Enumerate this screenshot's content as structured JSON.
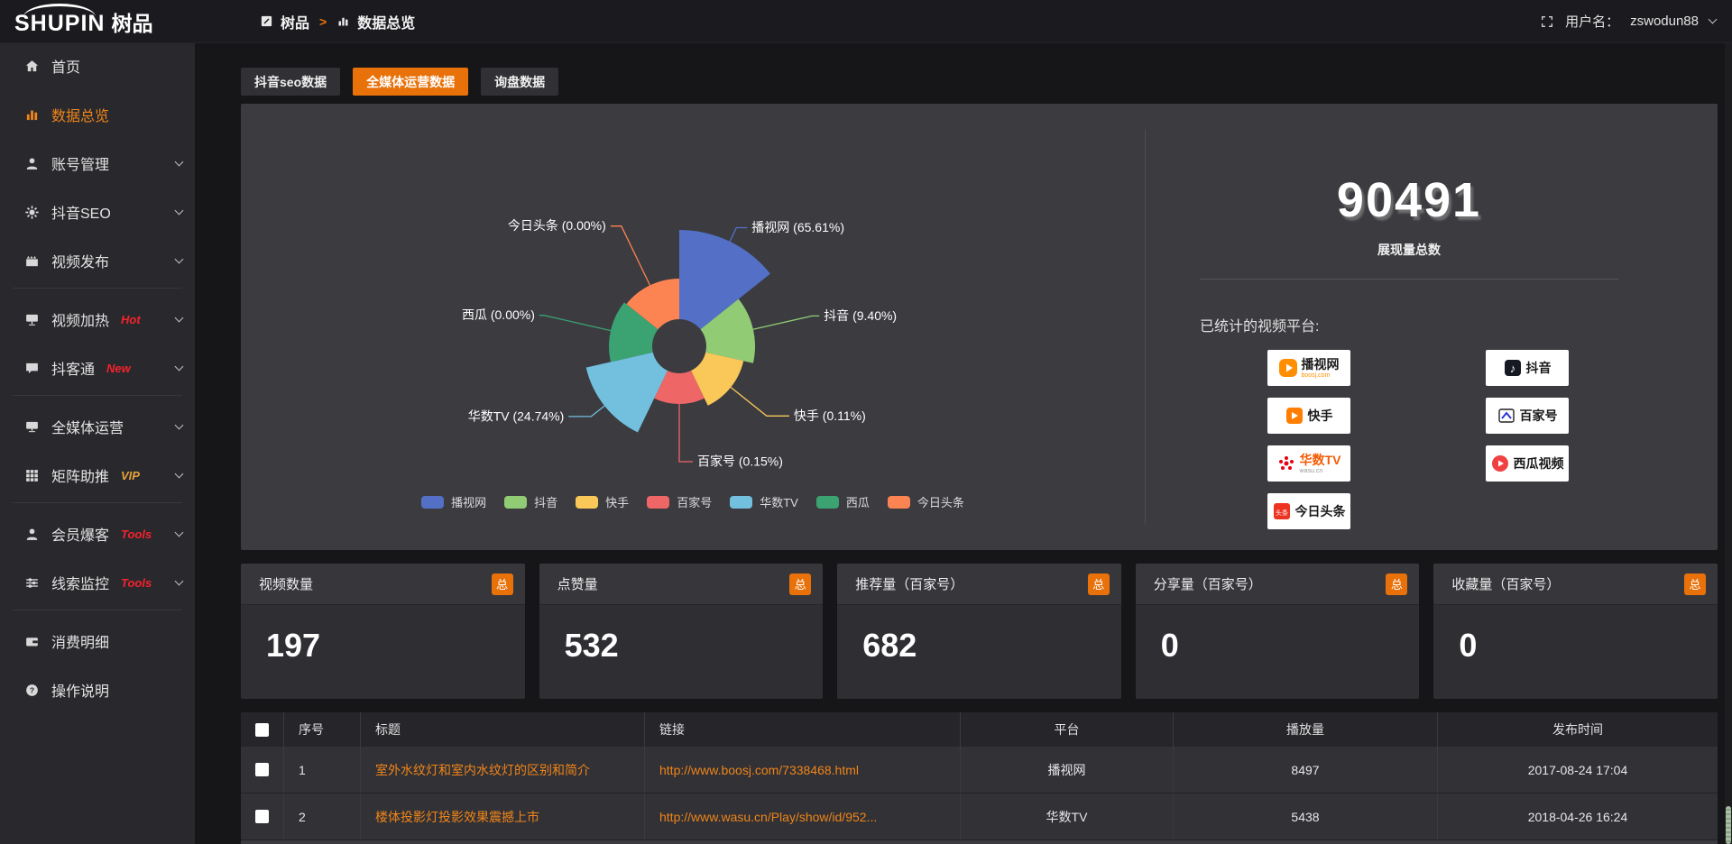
{
  "colors": {
    "accent_orange": "#e8710a",
    "link_orange": "#f08519",
    "hot_red": "#f5222d",
    "vip_gold": "#e6a23c",
    "panel_bg": "#3b3b40",
    "sidebar_bg": "#29292d",
    "header_bg": "#1b1b1f",
    "page_bg": "#161619"
  },
  "header": {
    "logo_en": "SHUPIN",
    "logo_cn": "树品",
    "breadcrumb": {
      "root": "树品",
      "separator": ">",
      "current": "数据总览"
    },
    "username_label": "用户名：",
    "username": "zswodun88"
  },
  "sidebar": {
    "items": [
      {
        "label": "首页",
        "icon": "home"
      },
      {
        "label": "数据总览",
        "icon": "chart",
        "active": true
      },
      {
        "label": "账号管理",
        "icon": "user",
        "chevron": true
      },
      {
        "label": "抖音SEO",
        "icon": "gear",
        "chevron": true
      },
      {
        "label": "视频发布",
        "icon": "clapper",
        "chevron": true,
        "divider_after": true
      },
      {
        "label": "视频加热",
        "icon": "heat",
        "tag": "Hot",
        "tag_color": "#f5222d",
        "chevron": true
      },
      {
        "label": "抖客通",
        "icon": "chat",
        "tag": "New",
        "tag_color": "#f5222d",
        "chevron": true,
        "divider_after": true
      },
      {
        "label": "全媒体运营",
        "icon": "monitor",
        "chevron": true
      },
      {
        "label": "矩阵助推",
        "icon": "grid",
        "tag": "VIP",
        "tag_color": "#e6a23c",
        "chevron": true,
        "divider_after": true
      },
      {
        "label": "会员爆客",
        "icon": "person",
        "tag": "Tools",
        "tag_color": "#f5222d",
        "chevron": true
      },
      {
        "label": "线索监控",
        "icon": "sliders",
        "tag": "Tools",
        "tag_color": "#f5222d",
        "chevron": true,
        "divider_after": true
      },
      {
        "label": "消费明细",
        "icon": "wallet"
      },
      {
        "label": "操作说明",
        "icon": "question"
      }
    ]
  },
  "tabs": [
    {
      "label": "抖音seo数据",
      "active": false
    },
    {
      "label": "全媒体运营数据",
      "active": true
    },
    {
      "label": "询盘数据",
      "active": false
    }
  ],
  "chart_data": {
    "type": "pie",
    "variant": "nightingale-rose",
    "labels": [
      "播视网",
      "抖音",
      "快手",
      "百家号",
      "华数TV",
      "西瓜",
      "今日头条"
    ],
    "values_percent": [
      65.61,
      9.4,
      0.11,
      0.15,
      24.74,
      0.0,
      0.0
    ],
    "label_format": "{name} ({percent}%)",
    "colors": [
      "#5470c6",
      "#91cc75",
      "#fac858",
      "#ee6666",
      "#73c0de",
      "#3ba272",
      "#fc8452"
    ],
    "legend": [
      "播视网",
      "抖音",
      "快手",
      "百家号",
      "华数TV",
      "西瓜",
      "今日头条"
    ],
    "legend_position": "bottom",
    "total": 90491,
    "layout": {
      "center": [
        486,
        269
      ],
      "inner_radius": 30,
      "slice_radii": [
        129,
        84,
        73,
        64,
        106,
        78,
        75
      ],
      "label_line_ext": [
        17,
        67,
        51,
        64,
        19,
        76,
        73
      ],
      "label_line_horiz": [
        12,
        8,
        25,
        15,
        25,
        5,
        12
      ]
    }
  },
  "summary": {
    "total_value": "90491",
    "total_label": "展现量总数",
    "platforms_label": "已统计的视频平台:",
    "platform_columns": [
      [
        {
          "name": "播视网",
          "sub": "boosj.com",
          "sub_color": "#ff8f00",
          "icon": "boosj"
        },
        {
          "name": "快手",
          "icon": "kuaishou"
        },
        {
          "name": "华数TV",
          "name_color": "#f25c05",
          "sub": "wasu.cn",
          "sub_color": "#999999",
          "icon": "wasu"
        },
        {
          "name": "今日头条",
          "icon": "toutiao"
        }
      ],
      [
        {
          "name": "抖音",
          "icon": "douyin"
        },
        {
          "name": "百家号",
          "icon": "baijiahao"
        },
        {
          "name": "西瓜视频",
          "icon": "xigua"
        }
      ]
    ]
  },
  "stat_cards": [
    {
      "label": "视频数量",
      "badge": "总",
      "value": "197"
    },
    {
      "label": "点赞量",
      "badge": "总",
      "value": "532"
    },
    {
      "label": "推荐量（百家号）",
      "badge": "总",
      "value": "682"
    },
    {
      "label": "分享量（百家号）",
      "badge": "总",
      "value": "0"
    },
    {
      "label": "收藏量（百家号）",
      "badge": "总",
      "value": "0"
    }
  ],
  "table": {
    "columns": [
      "序号",
      "标题",
      "链接",
      "平台",
      "播放量",
      "发布时间"
    ],
    "rows": [
      {
        "checked": false,
        "index": "1",
        "title": "室外水纹灯和室内水纹灯的区别和简介",
        "link": "http://www.boosj.com/7338468.html",
        "platform": "播视网",
        "plays": "8497",
        "published": "2017-08-24 17:04"
      },
      {
        "checked": false,
        "index": "2",
        "title": "楼体投影灯投影效果震撼上市",
        "link": "http://www.wasu.cn/Play/show/id/952...",
        "platform": "华数TV",
        "plays": "5438",
        "published": "2018-04-26 16:24"
      }
    ]
  }
}
